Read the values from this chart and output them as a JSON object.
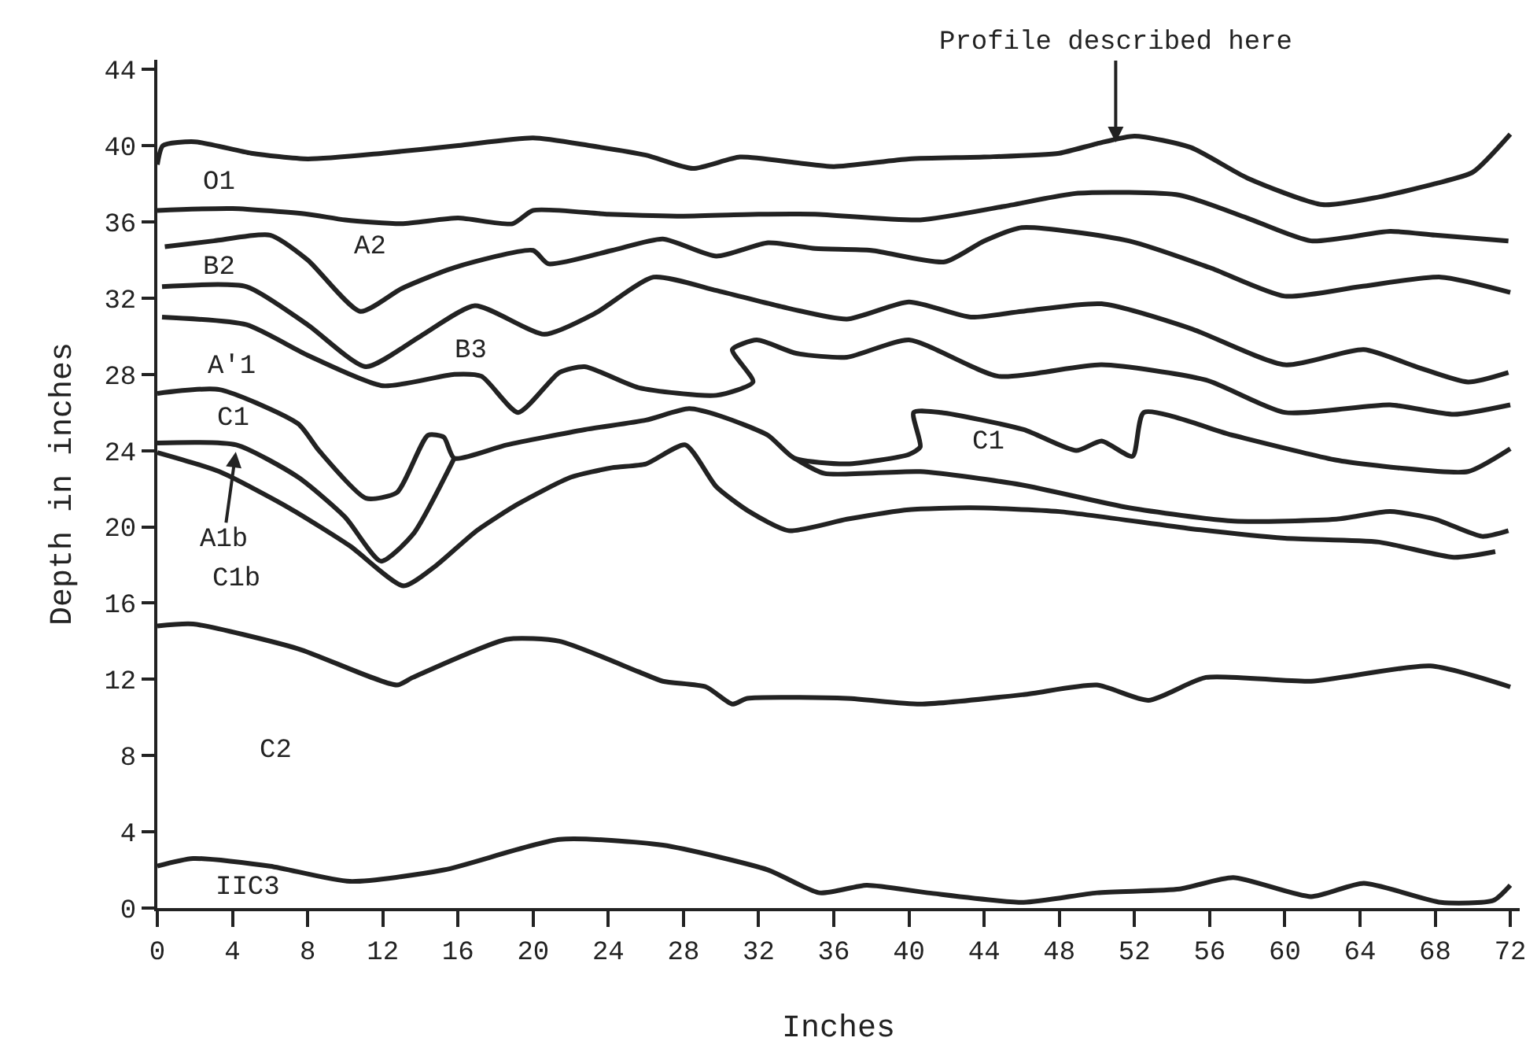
{
  "chart_data": {
    "type": "line",
    "xlabel": "Inches",
    "ylabel": "Depth in inches",
    "xlim": [
      0,
      72.5
    ],
    "ylim": [
      0,
      44.5
    ],
    "xticks": [
      0,
      4,
      8,
      12,
      16,
      20,
      24,
      28,
      32,
      36,
      40,
      44,
      48,
      52,
      56,
      60,
      64,
      68,
      72
    ],
    "yticks": [
      0,
      4,
      8,
      12,
      16,
      20,
      24,
      28,
      32,
      36,
      40,
      44
    ],
    "marker": "none",
    "line_style": "solid",
    "series": [
      {
        "color": "#222222",
        "x": [
          0,
          0.3,
          2,
          5,
          8,
          12,
          16,
          20,
          23,
          26,
          28.5,
          31,
          34,
          36,
          40,
          44,
          48,
          50,
          52,
          55,
          58,
          62,
          65,
          68,
          70,
          72
        ],
        "values": [
          39.0,
          40.0,
          40.2,
          39.6,
          39.3,
          39.6,
          40.0,
          40.4,
          40.0,
          39.5,
          38.8,
          39.4,
          39.1,
          38.9,
          39.3,
          39.4,
          39.6,
          40.1,
          40.5,
          39.9,
          38.3,
          36.9,
          37.3,
          38.0,
          38.6,
          40.6
        ]
      },
      {
        "color": "#222222",
        "x": [
          0,
          4,
          8,
          10,
          13,
          16,
          18.9,
          20,
          24,
          28,
          32,
          35,
          40.6,
          45,
          49,
          54.4,
          58,
          61.4,
          65.6,
          68,
          71.9
        ],
        "values": [
          36.6,
          36.7,
          36.4,
          36.1,
          35.9,
          36.2,
          35.9,
          36.6,
          36.4,
          36.3,
          36.4,
          36.4,
          36.1,
          36.8,
          37.5,
          37.4,
          36.2,
          35.0,
          35.5,
          35.3,
          35.0
        ]
      },
      {
        "color": "#222222",
        "x": [
          0.4,
          3,
          6,
          8,
          10.8,
          13,
          15.8,
          20,
          20.8,
          24.2,
          26.9,
          29.75,
          32.5,
          35,
          38,
          41.9,
          44,
          46,
          51.7,
          56,
          60,
          64,
          68.3,
          72
        ],
        "values": [
          34.7,
          35.0,
          35.3,
          34.0,
          31.3,
          32.5,
          33.6,
          34.5,
          33.8,
          34.5,
          35.1,
          34.2,
          34.9,
          34.6,
          34.5,
          33.9,
          35.0,
          35.7,
          35.0,
          33.6,
          32.1,
          32.6,
          33.1,
          32.3
        ]
      },
      {
        "color": "#222222",
        "x": [
          0.25,
          4.75,
          8,
          11.1,
          14,
          16.9,
          20.6,
          23.3,
          26.4,
          29.75,
          33,
          36.7,
          40,
          43.3,
          46,
          50.25,
          55,
          60,
          64.2,
          67,
          69.75,
          71.9
        ],
        "values": [
          32.6,
          32.6,
          30.6,
          28.4,
          30.0,
          31.6,
          30.1,
          31.2,
          33.1,
          32.4,
          31.6,
          30.9,
          31.8,
          31.0,
          31.3,
          31.7,
          30.4,
          28.5,
          29.3,
          28.4,
          27.6,
          28.1
        ]
      },
      {
        "color": "#222222",
        "x": [
          0.25,
          4.75,
          8,
          12,
          15.8,
          17.25,
          19.2,
          21.4,
          22.75,
          25.6,
          29.75,
          31.7,
          30.6,
          31.9,
          34,
          36.7,
          40,
          44.75,
          50.25,
          55.8,
          60,
          65.6,
          69,
          72
        ],
        "values": [
          31.0,
          30.6,
          29.0,
          27.4,
          28.0,
          27.9,
          26.0,
          28.1,
          28.4,
          27.3,
          26.9,
          27.6,
          29.3,
          29.8,
          29.1,
          28.9,
          29.8,
          27.9,
          28.5,
          27.7,
          26.0,
          26.4,
          25.9,
          26.4
        ]
      },
      {
        "color": "#222222",
        "x": [
          0,
          3.3,
          7.5,
          8.6,
          11.1,
          12.75,
          14.4,
          15.25,
          15.8,
          18.6,
          22.75,
          26,
          28.3,
          30,
          32.5,
          33.9,
          36.7,
          40,
          40.6,
          40.25,
          41.7,
          46.1,
          48.9,
          50.25,
          51.9,
          52.5,
          57.25,
          62.75,
          66,
          69.75,
          72
        ],
        "values": [
          27.0,
          27.2,
          25.4,
          24.0,
          21.5,
          21.8,
          24.8,
          24.7,
          23.6,
          24.3,
          25.1,
          25.6,
          26.2,
          25.8,
          24.8,
          23.6,
          23.3,
          23.8,
          24.2,
          26.0,
          26.0,
          25.1,
          24.0,
          24.5,
          23.7,
          26.0,
          24.8,
          23.5,
          23.1,
          22.9,
          24.1
        ]
      },
      {
        "color": "#222222",
        "x": [
          33.9,
          35.5,
          40.6,
          46,
          51.7,
          57.3,
          62.75,
          65.6,
          68,
          70.5,
          71.9
        ],
        "values": [
          23.6,
          22.8,
          22.9,
          22.2,
          21.0,
          20.3,
          20.4,
          20.8,
          20.4,
          19.5,
          19.8
        ]
      },
      {
        "color": "#222222",
        "x": [
          0,
          4.2,
          7.5,
          10,
          11.9,
          13.6,
          15.8
        ],
        "values": [
          24.4,
          24.3,
          22.6,
          20.5,
          18.2,
          19.6,
          23.6
        ]
      },
      {
        "color": "#222222",
        "x": [
          0,
          3.3,
          7,
          10.25,
          13.1,
          14.75,
          17,
          19.2,
          22,
          24.2,
          26,
          28.1,
          29.75,
          31.5,
          33.6,
          36.7,
          40,
          43.3,
          48,
          55,
          60,
          65,
          69,
          71.2
        ],
        "values": [
          23.9,
          22.9,
          21.0,
          19.0,
          16.9,
          17.9,
          19.8,
          21.2,
          22.6,
          23.1,
          23.3,
          24.3,
          22.1,
          20.8,
          19.8,
          20.4,
          20.9,
          21.0,
          20.8,
          19.9,
          19.4,
          19.2,
          18.4,
          18.7
        ]
      },
      {
        "color": "#222222",
        "x": [
          0,
          1.9,
          7.5,
          12.75,
          13.6,
          18.6,
          21.4,
          25.6,
          26.9,
          29.2,
          30.6,
          31.4,
          36.7,
          40.6,
          46.1,
          50,
          52.75,
          55.8,
          61.4,
          67.75,
          72
        ],
        "values": [
          14.8,
          14.9,
          13.6,
          11.7,
          12.1,
          14.1,
          14.0,
          12.4,
          11.9,
          11.6,
          10.7,
          11.0,
          11.0,
          10.7,
          11.2,
          11.7,
          10.9,
          12.1,
          11.9,
          12.7,
          11.6
        ]
      },
      {
        "color": "#222222",
        "x": [
          0,
          1.9,
          6,
          10.25,
          15.25,
          21.4,
          26.9,
          32.5,
          35.25,
          37.75,
          41,
          46.1,
          50,
          54.4,
          57.25,
          61.4,
          64.2,
          68.3,
          71.1,
          72
        ],
        "values": [
          2.2,
          2.6,
          2.2,
          1.4,
          2.0,
          3.6,
          3.3,
          2.0,
          0.8,
          1.2,
          0.8,
          0.3,
          0.8,
          1.0,
          1.6,
          0.6,
          1.3,
          0.3,
          0.4,
          1.2
        ]
      }
    ],
    "annotations": [
      {
        "text": "Profile described here",
        "x": 51,
        "y": 40.0
      },
      "O1",
      "A2",
      "B2",
      "B3",
      "A'1",
      "C1",
      {
        "text": "A1b",
        "x": 4.2,
        "y": 24.1
      },
      "C1b",
      "C1",
      "C2",
      "IIC3"
    ]
  }
}
